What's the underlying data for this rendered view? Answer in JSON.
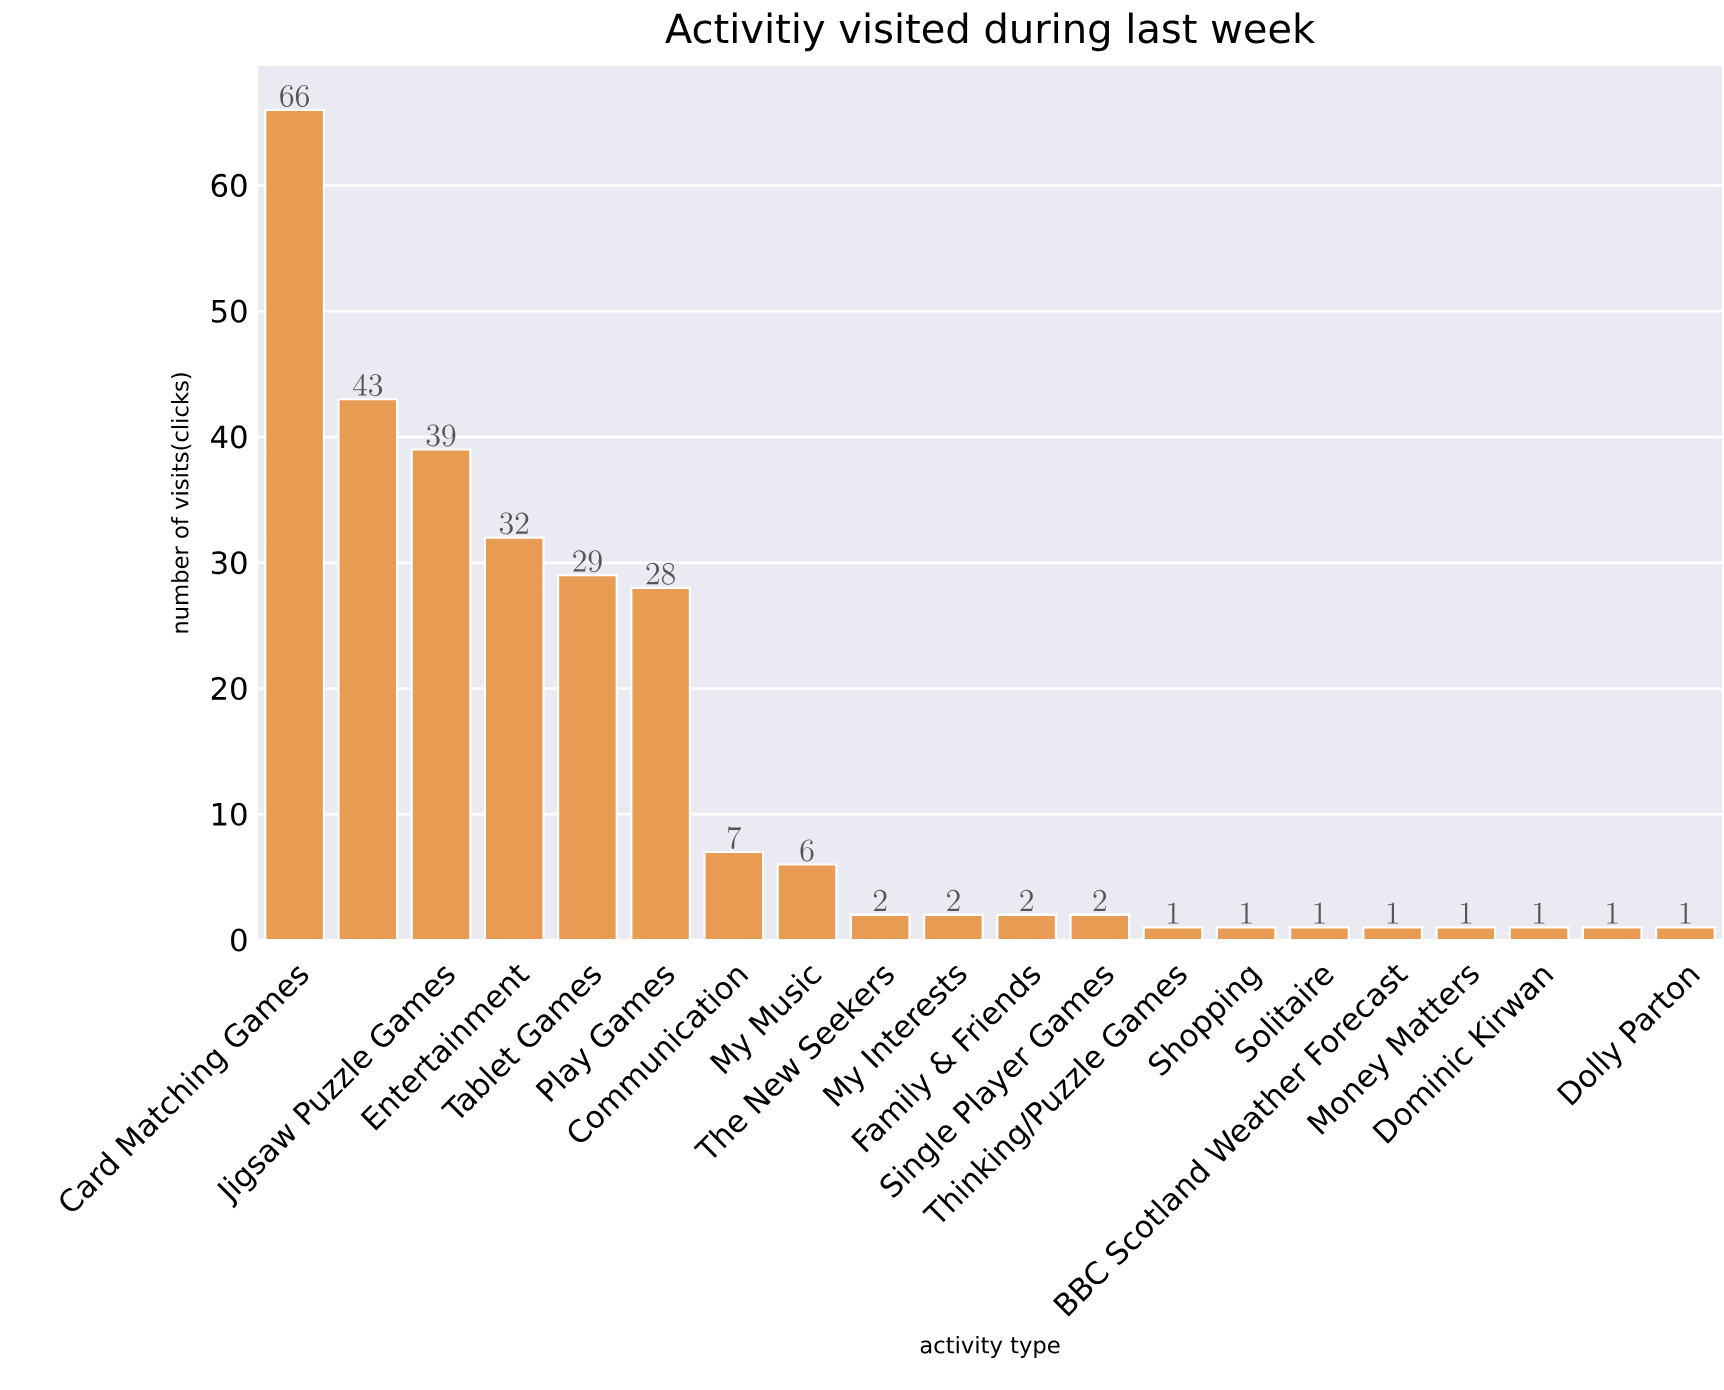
{
  "chart_data": {
    "type": "bar",
    "title": "Activitiy visited during last week",
    "xlabel": "activity type",
    "ylabel": "number of visits(clicks)",
    "categories": [
      "Card Matching Games",
      null,
      "Jigsaw Puzzle Games",
      "Entertainment",
      "Tablet Games",
      "Play Games",
      "Communication",
      "My Music",
      "The New Seekers",
      "My Interests",
      "Family & Friends",
      "Single Player Games",
      "Thinking/Puzzle Games",
      "Shopping",
      "Solitaire",
      "BBC Scotland Weather Forecast",
      "Money Matters",
      "Dominic Kirwan",
      null,
      "Dolly Parton"
    ],
    "values": [
      66,
      43,
      39,
      32,
      29,
      28,
      7,
      6,
      2,
      2,
      2,
      2,
      1,
      1,
      1,
      1,
      1,
      1,
      1,
      1
    ],
    "color": "#e89c53",
    "ylim": [
      0,
      69.5
    ],
    "yticks": [
      0,
      10,
      20,
      30,
      40,
      50,
      60
    ],
    "grid": "y",
    "data_labels": true
  }
}
